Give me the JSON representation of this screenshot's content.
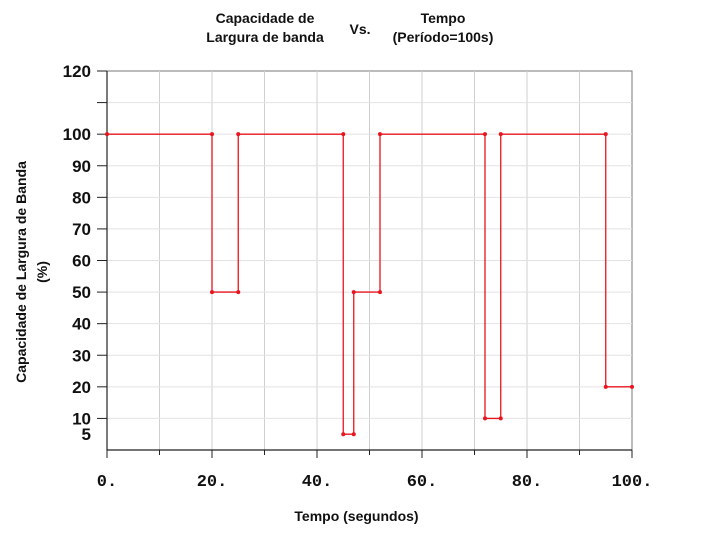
{
  "title": {
    "left": "Capacidade de Largura de banda",
    "middle": "Vs.",
    "right": "Tempo (Período=100s)"
  },
  "chart_data": {
    "type": "line",
    "step": true,
    "xlabel": "Tempo (segundos)",
    "ylabel": "Capacidade de  Largura de Banda (%)",
    "xlim": [
      0,
      100
    ],
    "ylim": [
      0,
      120
    ],
    "x_ticks": [
      0,
      20,
      40,
      60,
      80,
      100
    ],
    "x_tick_labels": [
      "0.",
      "20.",
      "40.",
      "60.",
      "80.",
      "100."
    ],
    "y_ticks": [
      5,
      10,
      20,
      30,
      40,
      50,
      60,
      70,
      80,
      90,
      100,
      120
    ],
    "grid": true,
    "series": [
      {
        "color": "#e8141e",
        "points": [
          [
            0,
            100
          ],
          [
            20,
            100
          ],
          [
            20,
            50
          ],
          [
            25,
            50
          ],
          [
            25,
            100
          ],
          [
            45,
            100
          ],
          [
            45,
            5
          ],
          [
            47,
            5
          ],
          [
            47,
            50
          ],
          [
            52,
            50
          ],
          [
            52,
            100
          ],
          [
            72,
            100
          ],
          [
            72,
            10
          ],
          [
            75,
            10
          ],
          [
            75,
            100
          ],
          [
            95,
            100
          ],
          [
            95,
            20
          ],
          [
            100,
            20
          ]
        ]
      }
    ]
  }
}
